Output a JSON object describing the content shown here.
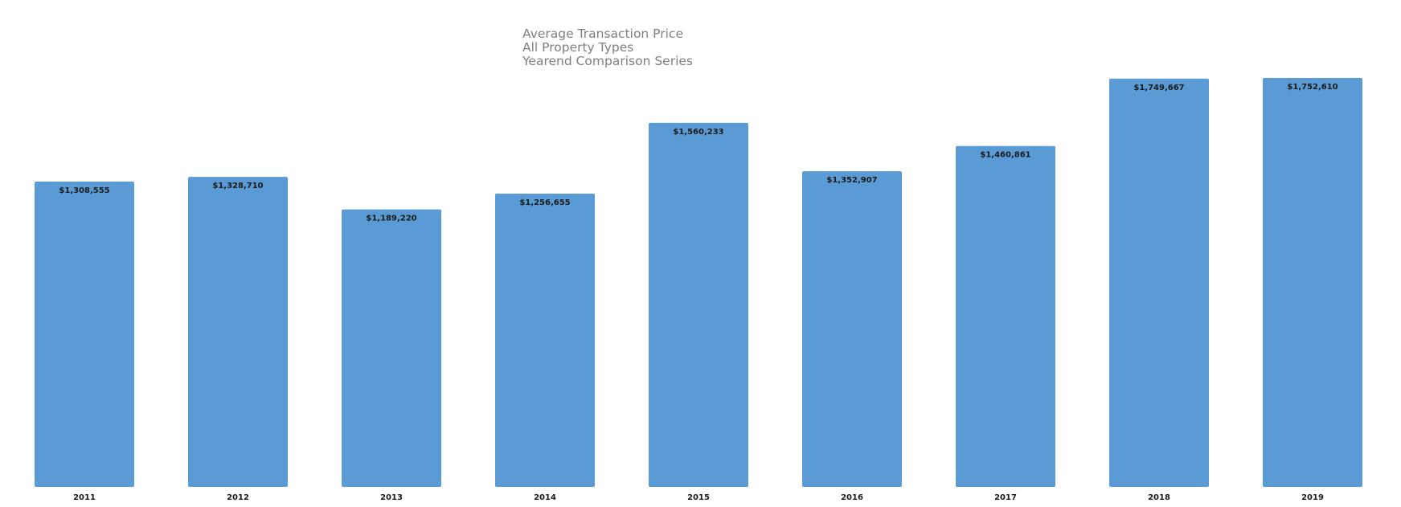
{
  "chart_data": {
    "type": "bar",
    "title_lines": [
      "Average Transaction Price",
      "All Property Types",
      "Yearend Comparison Series"
    ],
    "categories": [
      "2011",
      "2012",
      "2013",
      "2014",
      "2015",
      "2016",
      "2017",
      "2018",
      "2019"
    ],
    "values": [
      1308555,
      1328710,
      1189220,
      1256655,
      1560233,
      1352907,
      1460861,
      1749667,
      1752610
    ],
    "data_labels": [
      "$1,308,555",
      "$1,328,710",
      "$1,189,220",
      "$1,256,655",
      "$1,560,233",
      "$1,352,907",
      "$1,460,861",
      "$1,749,667",
      "$1,752,610"
    ],
    "xlabel": "",
    "ylabel": "",
    "ylim": [
      0,
      1752610
    ],
    "grid": false,
    "legend": "none",
    "bar_color": "#5b9bd5"
  }
}
